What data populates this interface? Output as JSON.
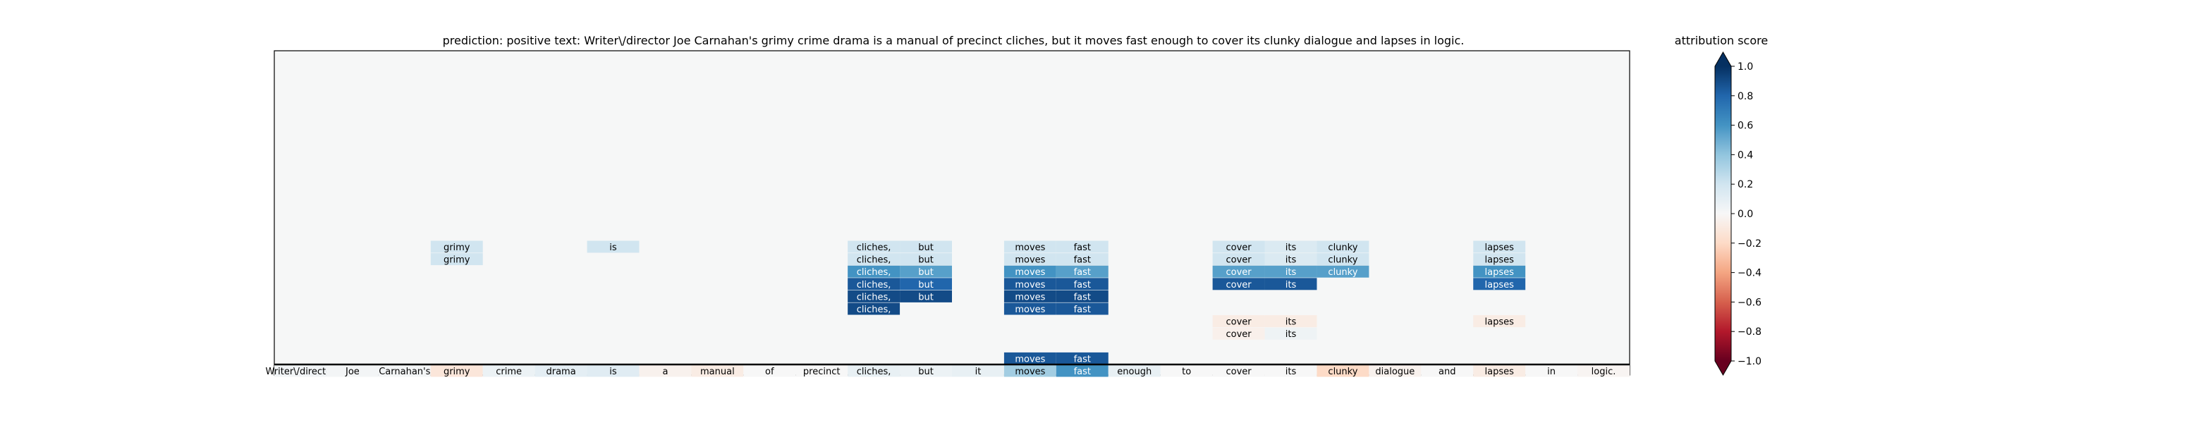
{
  "chart_data": {
    "type": "heatmap",
    "title": "prediction:  positive     text:  Writer\\/director Joe Carnahan's grimy crime drama is a manual of precinct cliches, but it moves fast enough to cover its clunky dialogue and lapses in logic.",
    "tokens": [
      "Writer\\/director",
      "Joe",
      "Carnahan's",
      "grimy",
      "crime",
      "drama",
      "is",
      "a",
      "manual",
      "of",
      "precinct",
      "cliches,",
      "but",
      "it",
      "moves",
      "fast",
      "enough",
      "to",
      "cover",
      "its",
      "clunky",
      "dialogue",
      "and",
      "lapses",
      "in",
      "logic."
    ],
    "token_scores": [
      0.03,
      0.02,
      0.02,
      -0.12,
      0.06,
      0.1,
      0.12,
      -0.04,
      -0.08,
      0.0,
      0.0,
      0.08,
      0.06,
      0.08,
      0.35,
      0.6,
      0.08,
      0.0,
      0.0,
      0.0,
      -0.2,
      -0.04,
      0.0,
      -0.08,
      0.0,
      -0.02
    ],
    "rows": [
      {
        "level": 1,
        "cells": [
          {
            "token": "moves",
            "score": 0.85
          },
          {
            "token": "fast",
            "score": 0.85
          }
        ]
      },
      {
        "level": 3,
        "cells": [
          {
            "token": "cover",
            "score": -0.05
          },
          {
            "token": "its",
            "score": 0.05
          }
        ]
      },
      {
        "level": 4,
        "cells": [
          {
            "token": "cover",
            "score": -0.08
          },
          {
            "token": "its",
            "score": -0.08
          },
          {
            "token": "lapses",
            "score": -0.08
          }
        ]
      },
      {
        "level": 5,
        "cells": [
          {
            "token": "cliches,",
            "score": 0.9
          },
          {
            "token": "moves",
            "score": 0.85
          },
          {
            "token": "fast",
            "score": 0.85
          }
        ]
      },
      {
        "level": 6,
        "cells": [
          {
            "token": "cliches,",
            "score": 0.9
          },
          {
            "token": "but",
            "score": 0.9
          },
          {
            "token": "moves",
            "score": 0.9
          },
          {
            "token": "fast",
            "score": 0.9
          }
        ]
      },
      {
        "level": 7,
        "cells": [
          {
            "token": "cliches,",
            "score": 0.85
          },
          {
            "token": "but",
            "score": 0.8
          },
          {
            "token": "moves",
            "score": 0.85
          },
          {
            "token": "fast",
            "score": 0.85
          },
          {
            "token": "cover",
            "score": 0.85
          },
          {
            "token": "its",
            "score": 0.85
          },
          {
            "token": "lapses",
            "score": 0.8
          }
        ]
      },
      {
        "level": 8,
        "cells": [
          {
            "token": "cliches,",
            "score": 0.6
          },
          {
            "token": "but",
            "score": 0.55
          },
          {
            "token": "moves",
            "score": 0.6
          },
          {
            "token": "fast",
            "score": 0.55
          },
          {
            "token": "cover",
            "score": 0.55
          },
          {
            "token": "its",
            "score": 0.55
          },
          {
            "token": "clunky",
            "score": 0.55
          },
          {
            "token": "lapses",
            "score": 0.6
          }
        ]
      },
      {
        "level": 9,
        "cells": [
          {
            "token": "cliches,",
            "score": 0.2
          },
          {
            "token": "but",
            "score": 0.2
          },
          {
            "token": "moves",
            "score": 0.2
          },
          {
            "token": "fast",
            "score": 0.2
          },
          {
            "token": "cover",
            "score": 0.2
          },
          {
            "token": "its",
            "score": 0.15
          },
          {
            "token": "clunky",
            "score": 0.2
          },
          {
            "token": "lapses",
            "score": 0.2
          },
          {
            "token": "grimy",
            "score": 0.2
          }
        ]
      },
      {
        "level": 10,
        "cells": [
          {
            "token": "cliches,",
            "score": 0.2
          },
          {
            "token": "but",
            "score": 0.2
          },
          {
            "token": "moves",
            "score": 0.2
          },
          {
            "token": "fast",
            "score": 0.2
          },
          {
            "token": "cover",
            "score": 0.2
          },
          {
            "token": "its",
            "score": 0.15
          },
          {
            "token": "clunky",
            "score": 0.2
          },
          {
            "token": "lapses",
            "score": 0.2
          },
          {
            "token": "grimy",
            "score": 0.2
          },
          {
            "token": "is",
            "score": 0.2
          }
        ]
      }
    ],
    "colorbar": {
      "label": "attribution score",
      "range": [
        -1.0,
        1.0
      ],
      "ticks": [
        1.0,
        0.8,
        0.6,
        0.4,
        0.2,
        0.0,
        -0.2,
        -0.4,
        -0.6,
        -0.8,
        -1.0
      ],
      "tick_labels": [
        "1.0",
        "0.8",
        "0.6",
        "0.4",
        "0.2",
        "0.0",
        "−0.2",
        "−0.4",
        "−0.6",
        "−0.8",
        "−1.0"
      ],
      "colormap": "RdBu"
    },
    "grid": false
  }
}
